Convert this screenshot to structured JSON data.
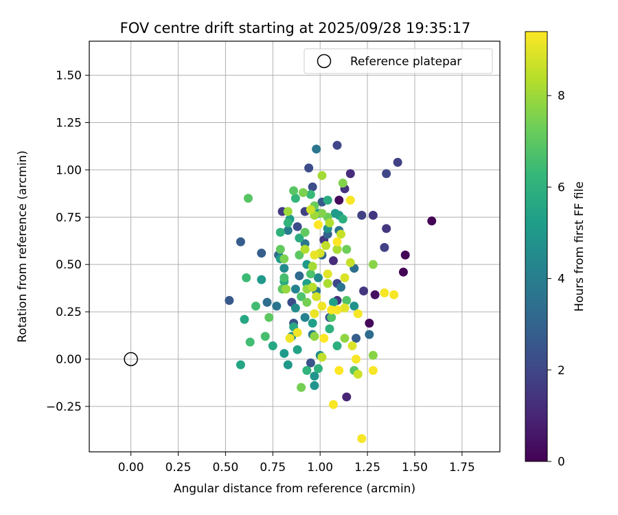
{
  "chart_data": {
    "type": "scatter",
    "title": "FOV centre drift starting at 2025/09/28 19:35:17",
    "xlabel": "Angular distance from reference (arcmin)",
    "ylabel": "Rotation from reference (arcmin)",
    "xlim": [
      -0.22,
      1.95
    ],
    "ylim": [
      -0.49,
      1.68
    ],
    "xticks": [
      0.0,
      0.25,
      0.5,
      0.75,
      1.0,
      1.25,
      1.5,
      1.75
    ],
    "xtick_labels": [
      "0.00",
      "0.25",
      "0.50",
      "0.75",
      "1.00",
      "1.25",
      "1.50",
      "1.75"
    ],
    "yticks": [
      -0.25,
      0.0,
      0.25,
      0.5,
      0.75,
      1.0,
      1.25,
      1.5
    ],
    "ytick_labels": [
      "−0.25",
      "0.00",
      "0.25",
      "0.50",
      "0.75",
      "1.00",
      "1.25",
      "1.50"
    ],
    "grid": true,
    "legend": {
      "placement": "top-right",
      "entries": [
        {
          "label": "Reference platepar",
          "marker": "open-circle"
        }
      ]
    },
    "reference_point": {
      "x": 0.0,
      "y": 0.0
    },
    "colorbar": {
      "label": "Hours from first FF file",
      "colormap": "viridis",
      "min": 0,
      "max": 9.4,
      "ticks": [
        0,
        2,
        4,
        6,
        8
      ],
      "tick_labels": [
        "0",
        "2",
        "4",
        "6",
        "8"
      ]
    },
    "points": [
      {
        "x": 1.59,
        "y": 0.73,
        "c": 0.1
      },
      {
        "x": 1.45,
        "y": 0.55,
        "c": 0.1
      },
      {
        "x": 1.44,
        "y": 0.46,
        "c": 0.1
      },
      {
        "x": 1.26,
        "y": 0.19,
        "c": 0.2
      },
      {
        "x": 1.29,
        "y": 0.34,
        "c": 0.4
      },
      {
        "x": 1.1,
        "y": 0.84,
        "c": 0.3
      },
      {
        "x": 1.14,
        "y": -0.2,
        "c": 1.0
      },
      {
        "x": 1.41,
        "y": 1.04,
        "c": 1.8
      },
      {
        "x": 1.35,
        "y": 0.98,
        "c": 2.0
      },
      {
        "x": 1.35,
        "y": 0.69,
        "c": 1.5
      },
      {
        "x": 1.34,
        "y": 0.59,
        "c": 1.8
      },
      {
        "x": 1.16,
        "y": 0.98,
        "c": 1.2
      },
      {
        "x": 1.09,
        "y": 1.13,
        "c": 2.0
      },
      {
        "x": 0.94,
        "y": 1.01,
        "c": 2.2
      },
      {
        "x": 1.23,
        "y": 0.36,
        "c": 1.5
      },
      {
        "x": 1.28,
        "y": 0.76,
        "c": 1.5
      },
      {
        "x": 1.22,
        "y": 0.76,
        "c": 1.8
      },
      {
        "x": 0.52,
        "y": 0.31,
        "c": 2.6
      },
      {
        "x": 0.58,
        "y": 0.62,
        "c": 2.8
      },
      {
        "x": 0.69,
        "y": 0.56,
        "c": 2.8
      },
      {
        "x": 0.8,
        "y": 0.78,
        "c": 1.6
      },
      {
        "x": 0.88,
        "y": 0.7,
        "c": 2.2
      },
      {
        "x": 0.92,
        "y": 0.78,
        "c": 1.8
      },
      {
        "x": 0.96,
        "y": 0.91,
        "c": 2.2
      },
      {
        "x": 1.01,
        "y": 0.83,
        "c": 2.6
      },
      {
        "x": 1.13,
        "y": 0.9,
        "c": 1.4
      },
      {
        "x": 1.07,
        "y": 0.52,
        "c": 1.2
      },
      {
        "x": 1.02,
        "y": 0.63,
        "c": 1.6
      },
      {
        "x": 1.09,
        "y": 0.31,
        "c": 1.4
      },
      {
        "x": 1.09,
        "y": 0.4,
        "c": 2.0
      },
      {
        "x": 1.05,
        "y": 0.22,
        "c": 2.4
      },
      {
        "x": 0.95,
        "y": -0.02,
        "c": 2.4
      },
      {
        "x": 0.86,
        "y": 0.19,
        "c": 2.4
      },
      {
        "x": 0.85,
        "y": 0.3,
        "c": 2.2
      },
      {
        "x": 1.19,
        "y": 0.11,
        "c": 2.8
      },
      {
        "x": 1.26,
        "y": 0.13,
        "c": 3.3
      },
      {
        "x": 1.18,
        "y": 0.48,
        "c": 3.4
      },
      {
        "x": 1.01,
        "y": 0.55,
        "c": 3.1
      },
      {
        "x": 0.89,
        "y": 0.44,
        "c": 3.2
      },
      {
        "x": 0.77,
        "y": 0.28,
        "c": 3.6
      },
      {
        "x": 0.72,
        "y": 0.3,
        "c": 3.4
      },
      {
        "x": 1.1,
        "y": 0.68,
        "c": 3.6
      },
      {
        "x": 0.98,
        "y": 1.11,
        "c": 3.7
      },
      {
        "x": 0.78,
        "y": 0.55,
        "c": 3.2
      },
      {
        "x": 1.11,
        "y": 0.38,
        "c": 3.6
      },
      {
        "x": 0.98,
        "y": 0.36,
        "c": 3.8
      },
      {
        "x": 0.92,
        "y": 0.61,
        "c": 3.7
      },
      {
        "x": 0.83,
        "y": 0.68,
        "c": 3.9
      },
      {
        "x": 1.04,
        "y": 0.66,
        "c": 3.0
      },
      {
        "x": 0.96,
        "y": 0.13,
        "c": 4.1
      },
      {
        "x": 0.92,
        "y": 0.22,
        "c": 4.2
      },
      {
        "x": 0.99,
        "y": 0.43,
        "c": 4.5
      },
      {
        "x": 0.87,
        "y": 0.37,
        "c": 4.2
      },
      {
        "x": 0.87,
        "y": 0.27,
        "c": 4.6
      },
      {
        "x": 0.81,
        "y": 0.48,
        "c": 4.5
      },
      {
        "x": 0.85,
        "y": 0.12,
        "c": 4.8
      },
      {
        "x": 1.0,
        "y": 0.02,
        "c": 4.6
      },
      {
        "x": 0.99,
        "y": 0.77,
        "c": 4.8
      },
      {
        "x": 1.04,
        "y": 0.69,
        "c": 4.7
      },
      {
        "x": 1.09,
        "y": 0.58,
        "c": 4.7
      },
      {
        "x": 1.18,
        "y": 0.28,
        "c": 4.8
      },
      {
        "x": 0.97,
        "y": -0.14,
        "c": 4.9
      },
      {
        "x": 0.97,
        "y": -0.09,
        "c": 4.9
      },
      {
        "x": 0.69,
        "y": 0.42,
        "c": 5.0
      },
      {
        "x": 0.81,
        "y": 0.03,
        "c": 5.1
      },
      {
        "x": 0.83,
        "y": -0.03,
        "c": 5.0
      },
      {
        "x": 0.93,
        "y": 0.5,
        "c": 5.0
      },
      {
        "x": 1.08,
        "y": 0.77,
        "c": 5.1
      },
      {
        "x": 1.1,
        "y": 0.76,
        "c": 5.2
      },
      {
        "x": 0.84,
        "y": 0.74,
        "c": 5.2
      },
      {
        "x": 0.79,
        "y": 0.53,
        "c": 5.2
      },
      {
        "x": 0.93,
        "y": 0.4,
        "c": 5.3
      },
      {
        "x": 1.07,
        "y": 0.3,
        "c": 5.3
      },
      {
        "x": 0.96,
        "y": 0.19,
        "c": 5.3
      },
      {
        "x": 0.88,
        "y": 0.05,
        "c": 5.4
      },
      {
        "x": 0.58,
        "y": -0.03,
        "c": 5.5
      },
      {
        "x": 0.6,
        "y": 0.21,
        "c": 5.6
      },
      {
        "x": 0.75,
        "y": 0.07,
        "c": 5.6
      },
      {
        "x": 0.86,
        "y": 0.17,
        "c": 5.7
      },
      {
        "x": 0.81,
        "y": 0.41,
        "c": 5.7
      },
      {
        "x": 0.89,
        "y": 0.64,
        "c": 5.8
      },
      {
        "x": 1.04,
        "y": 0.84,
        "c": 5.8
      },
      {
        "x": 1.12,
        "y": 0.74,
        "c": 5.9
      },
      {
        "x": 1.09,
        "y": 0.07,
        "c": 5.9
      },
      {
        "x": 1.05,
        "y": 0.16,
        "c": 6.0
      },
      {
        "x": 0.93,
        "y": -0.06,
        "c": 6.1
      },
      {
        "x": 0.99,
        "y": -0.05,
        "c": 6.0
      },
      {
        "x": 0.79,
        "y": 0.67,
        "c": 6.0
      },
      {
        "x": 0.83,
        "y": 0.72,
        "c": 6.1
      },
      {
        "x": 0.87,
        "y": 0.85,
        "c": 6.2
      },
      {
        "x": 0.95,
        "y": 0.87,
        "c": 6.3
      },
      {
        "x": 0.61,
        "y": 0.43,
        "c": 6.4
      },
      {
        "x": 0.66,
        "y": 0.28,
        "c": 6.5
      },
      {
        "x": 0.63,
        "y": 0.09,
        "c": 6.5
      },
      {
        "x": 0.71,
        "y": 0.12,
        "c": 6.6
      },
      {
        "x": 0.81,
        "y": 0.43,
        "c": 6.6
      },
      {
        "x": 0.9,
        "y": 0.33,
        "c": 6.7
      },
      {
        "x": 0.95,
        "y": 0.45,
        "c": 6.7
      },
      {
        "x": 1.06,
        "y": 0.22,
        "c": 6.8
      },
      {
        "x": 1.14,
        "y": 0.31,
        "c": 6.8
      },
      {
        "x": 1.18,
        "y": -0.06,
        "c": 6.9
      },
      {
        "x": 0.62,
        "y": 0.85,
        "c": 6.9
      },
      {
        "x": 0.86,
        "y": 0.89,
        "c": 6.9
      },
      {
        "x": 0.89,
        "y": 0.55,
        "c": 7.0
      },
      {
        "x": 0.73,
        "y": 0.22,
        "c": 7.0
      },
      {
        "x": 0.8,
        "y": 0.37,
        "c": 7.0
      },
      {
        "x": 0.79,
        "y": 0.58,
        "c": 7.1
      },
      {
        "x": 0.92,
        "y": 0.67,
        "c": 7.1
      },
      {
        "x": 0.97,
        "y": 0.81,
        "c": 7.2
      },
      {
        "x": 1.04,
        "y": 0.75,
        "c": 7.2
      },
      {
        "x": 1.14,
        "y": 0.58,
        "c": 7.3
      },
      {
        "x": 0.9,
        "y": -0.15,
        "c": 7.4
      },
      {
        "x": 0.93,
        "y": 0.3,
        "c": 7.4
      },
      {
        "x": 0.81,
        "y": 0.53,
        "c": 7.5
      },
      {
        "x": 0.91,
        "y": 0.88,
        "c": 7.5
      },
      {
        "x": 1.01,
        "y": 0.77,
        "c": 7.6
      },
      {
        "x": 1.12,
        "y": 0.93,
        "c": 7.6
      },
      {
        "x": 1.28,
        "y": 0.5,
        "c": 7.7
      },
      {
        "x": 1.28,
        "y": 0.02,
        "c": 7.7
      },
      {
        "x": 1.13,
        "y": 0.11,
        "c": 7.8
      },
      {
        "x": 0.97,
        "y": 0.12,
        "c": 7.8
      },
      {
        "x": 0.93,
        "y": 0.37,
        "c": 7.9
      },
      {
        "x": 0.82,
        "y": 0.37,
        "c": 7.9
      },
      {
        "x": 0.83,
        "y": 0.78,
        "c": 8.0
      },
      {
        "x": 0.97,
        "y": 0.76,
        "c": 8.0
      },
      {
        "x": 1.01,
        "y": 0.97,
        "c": 8.1
      },
      {
        "x": 0.96,
        "y": 0.49,
        "c": 8.1
      },
      {
        "x": 1.04,
        "y": 0.4,
        "c": 8.2
      },
      {
        "x": 1.09,
        "y": 0.58,
        "c": 8.2
      },
      {
        "x": 1.05,
        "y": 0.72,
        "c": 8.3
      },
      {
        "x": 0.92,
        "y": 0.58,
        "c": 8.3
      },
      {
        "x": 0.96,
        "y": 0.38,
        "c": 8.4
      },
      {
        "x": 1.01,
        "y": 0.01,
        "c": 8.5
      },
      {
        "x": 1.03,
        "y": 0.6,
        "c": 8.5
      },
      {
        "x": 1.11,
        "y": 0.66,
        "c": 8.6
      },
      {
        "x": 1.16,
        "y": 0.51,
        "c": 8.6
      },
      {
        "x": 1.2,
        "y": -0.08,
        "c": 8.7
      },
      {
        "x": 0.95,
        "y": 0.79,
        "c": 8.7
      },
      {
        "x": 0.98,
        "y": 0.33,
        "c": 8.8
      },
      {
        "x": 1.0,
        "y": 0.56,
        "c": 8.8
      },
      {
        "x": 1.13,
        "y": 0.43,
        "c": 8.9
      },
      {
        "x": 1.17,
        "y": 0.07,
        "c": 8.9
      },
      {
        "x": 1.13,
        "y": 0.27,
        "c": 9.0
      },
      {
        "x": 1.04,
        "y": 0.45,
        "c": 9.0
      },
      {
        "x": 0.97,
        "y": 0.55,
        "c": 9.1
      },
      {
        "x": 0.97,
        "y": 0.24,
        "c": 9.1
      },
      {
        "x": 1.01,
        "y": 0.28,
        "c": 9.2
      },
      {
        "x": 0.88,
        "y": 0.14,
        "c": 9.2
      },
      {
        "x": 0.84,
        "y": 0.11,
        "c": 9.2
      },
      {
        "x": 1.07,
        "y": -0.24,
        "c": 9.3
      },
      {
        "x": 1.22,
        "y": -0.42,
        "c": 9.3
      },
      {
        "x": 1.09,
        "y": 0.26,
        "c": 9.3
      },
      {
        "x": 1.16,
        "y": 0.84,
        "c": 9.3
      },
      {
        "x": 1.34,
        "y": 0.35,
        "c": 9.3
      },
      {
        "x": 1.39,
        "y": 0.34,
        "c": 9.3
      },
      {
        "x": 1.2,
        "y": 0.24,
        "c": 9.3
      },
      {
        "x": 1.28,
        "y": -0.06,
        "c": 9.3
      },
      {
        "x": 1.19,
        "y": 0.0,
        "c": 9.3
      },
      {
        "x": 1.1,
        "y": -0.06,
        "c": 9.4
      },
      {
        "x": 1.02,
        "y": 0.11,
        "c": 9.4
      },
      {
        "x": 1.09,
        "y": 0.62,
        "c": 9.4
      },
      {
        "x": 0.99,
        "y": 0.71,
        "c": 9.4
      },
      {
        "x": 1.06,
        "y": 0.26,
        "c": 9.4
      }
    ]
  }
}
